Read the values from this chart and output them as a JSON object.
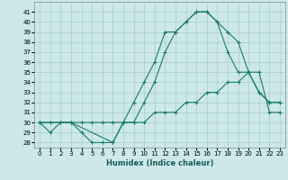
{
  "xlabel": "Humidex (Indice chaleur)",
  "bg_color": "#cce8e8",
  "grid_color": "#aacccc",
  "line_color": "#1a7a6e",
  "xlim": [
    -0.5,
    23.5
  ],
  "ylim": [
    27.5,
    42.0
  ],
  "xticks": [
    0,
    1,
    2,
    3,
    4,
    5,
    6,
    7,
    8,
    9,
    10,
    11,
    12,
    13,
    14,
    15,
    16,
    17,
    18,
    19,
    20,
    21,
    22,
    23
  ],
  "yticks": [
    28,
    29,
    30,
    31,
    32,
    33,
    34,
    35,
    36,
    37,
    38,
    39,
    40,
    41
  ],
  "line1_x": [
    0,
    1,
    2,
    3,
    4,
    5,
    6,
    7,
    8,
    9,
    10,
    11,
    12,
    13,
    14,
    15,
    16,
    17,
    18,
    19,
    20,
    21,
    22,
    23
  ],
  "line1_y": [
    30,
    29,
    30,
    30,
    29,
    28,
    28,
    28,
    30,
    32,
    34,
    36,
    39,
    39,
    40,
    41,
    41,
    40,
    37,
    35,
    35,
    33,
    32,
    32
  ],
  "line2_x": [
    0,
    1,
    2,
    3,
    4,
    5,
    6,
    7,
    8,
    9,
    10,
    11,
    12,
    13,
    14,
    15,
    16,
    17,
    18,
    19,
    20,
    21,
    22,
    23
  ],
  "line2_y": [
    30,
    30,
    30,
    30,
    30,
    30,
    30,
    30,
    30,
    30,
    30,
    31,
    31,
    31,
    32,
    32,
    33,
    33,
    34,
    34,
    35,
    35,
    31,
    31
  ],
  "line3_x": [
    0,
    3,
    7,
    8,
    9,
    10,
    11,
    12,
    13,
    14,
    15,
    16,
    17,
    18,
    19,
    20,
    21,
    22,
    23
  ],
  "line3_y": [
    30,
    30,
    28,
    30,
    30,
    32,
    34,
    37,
    39,
    40,
    41,
    41,
    40,
    39,
    38,
    35,
    33,
    32,
    32
  ]
}
